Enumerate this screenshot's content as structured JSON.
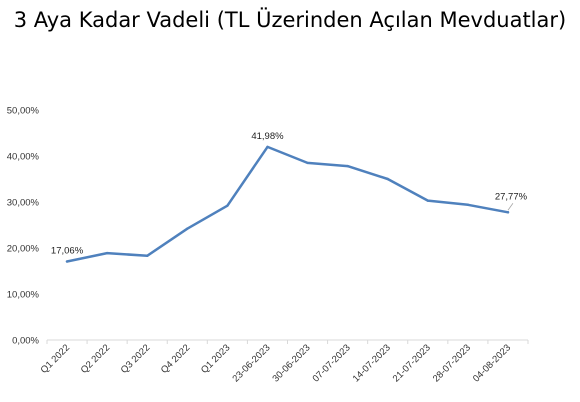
{
  "chart_data": {
    "type": "line",
    "title": "3 Aya Kadar Vadeli (TL Üzerinden Açılan Mevduatlar)",
    "xlabel": "",
    "ylabel": "",
    "categories": [
      "Q1 2022",
      "Q2 2022",
      "Q3 2022",
      "Q4 2022",
      "Q1 2023",
      "23-06-2023",
      "30-06-2023",
      "07-07-2023",
      "14-07-2023",
      "21-07-2023",
      "28-07-2023",
      "04-08-2023"
    ],
    "series": [
      {
        "name": "",
        "values": [
          17.06,
          18.9,
          18.3,
          24.2,
          29.2,
          41.98,
          38.5,
          37.8,
          35.0,
          30.3,
          29.4,
          27.77
        ],
        "color": "#4f81bd"
      }
    ],
    "data_labels": [
      {
        "index": 0,
        "text": "17,06%"
      },
      {
        "index": 5,
        "text": "41,98%"
      },
      {
        "index": 11,
        "text": "27,77%"
      }
    ],
    "ylim": [
      0,
      50
    ],
    "yticks": [
      0,
      10,
      20,
      30,
      40,
      50
    ],
    "ytick_labels": [
      "0,00%",
      "10,00%",
      "20,00%",
      "30,00%",
      "40,00%",
      "50,00%"
    ],
    "grid": false,
    "legend": "none"
  }
}
